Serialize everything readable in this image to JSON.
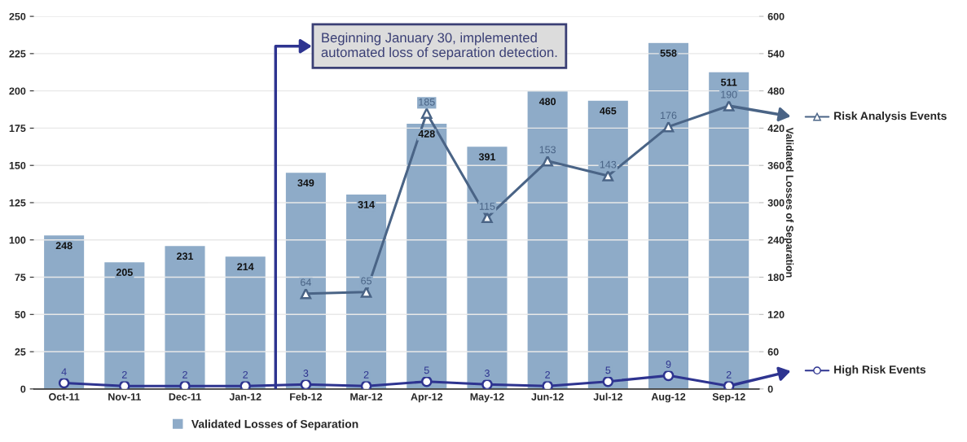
{
  "chart_data": {
    "type": "bar",
    "categories": [
      "Oct-11",
      "Nov-11",
      "Dec-11",
      "Jan-12",
      "Feb-12",
      "Mar-12",
      "Apr-12",
      "May-12",
      "Jun-12",
      "Jul-12",
      "Aug-12",
      "Sep-12"
    ],
    "series": [
      {
        "name": "Validated Losses of Separation",
        "axis": "y2",
        "color": "#8eabc8",
        "values": [
          248,
          205,
          231,
          214,
          349,
          314,
          428,
          391,
          480,
          465,
          558,
          511
        ]
      },
      {
        "name": "Risk Analysis Events",
        "type": "line",
        "marker": "triangle",
        "color": "#4a6486",
        "values": [
          null,
          null,
          null,
          null,
          64,
          65,
          185,
          115,
          153,
          143,
          176,
          190
        ]
      },
      {
        "name": "High Risk Events",
        "type": "line",
        "marker": "circle",
        "color": "#2e3490",
        "values": [
          4,
          2,
          2,
          2,
          3,
          2,
          5,
          3,
          2,
          5,
          9,
          2
        ]
      }
    ],
    "ylim": [
      0,
      250
    ],
    "yticks": [
      0,
      25,
      50,
      75,
      100,
      125,
      150,
      175,
      200,
      225,
      250
    ],
    "y2lim": [
      0,
      600
    ],
    "y2ticks": [
      0,
      60,
      120,
      180,
      240,
      300,
      360,
      420,
      480,
      540,
      600
    ],
    "y2label": "Validated Losses of Separation",
    "annotations": [
      "Beginning January 30, implemented automated loss of separation detection."
    ],
    "data_labels": true,
    "grid": "y",
    "legend": "bottom",
    "line_style": "solid"
  }
}
